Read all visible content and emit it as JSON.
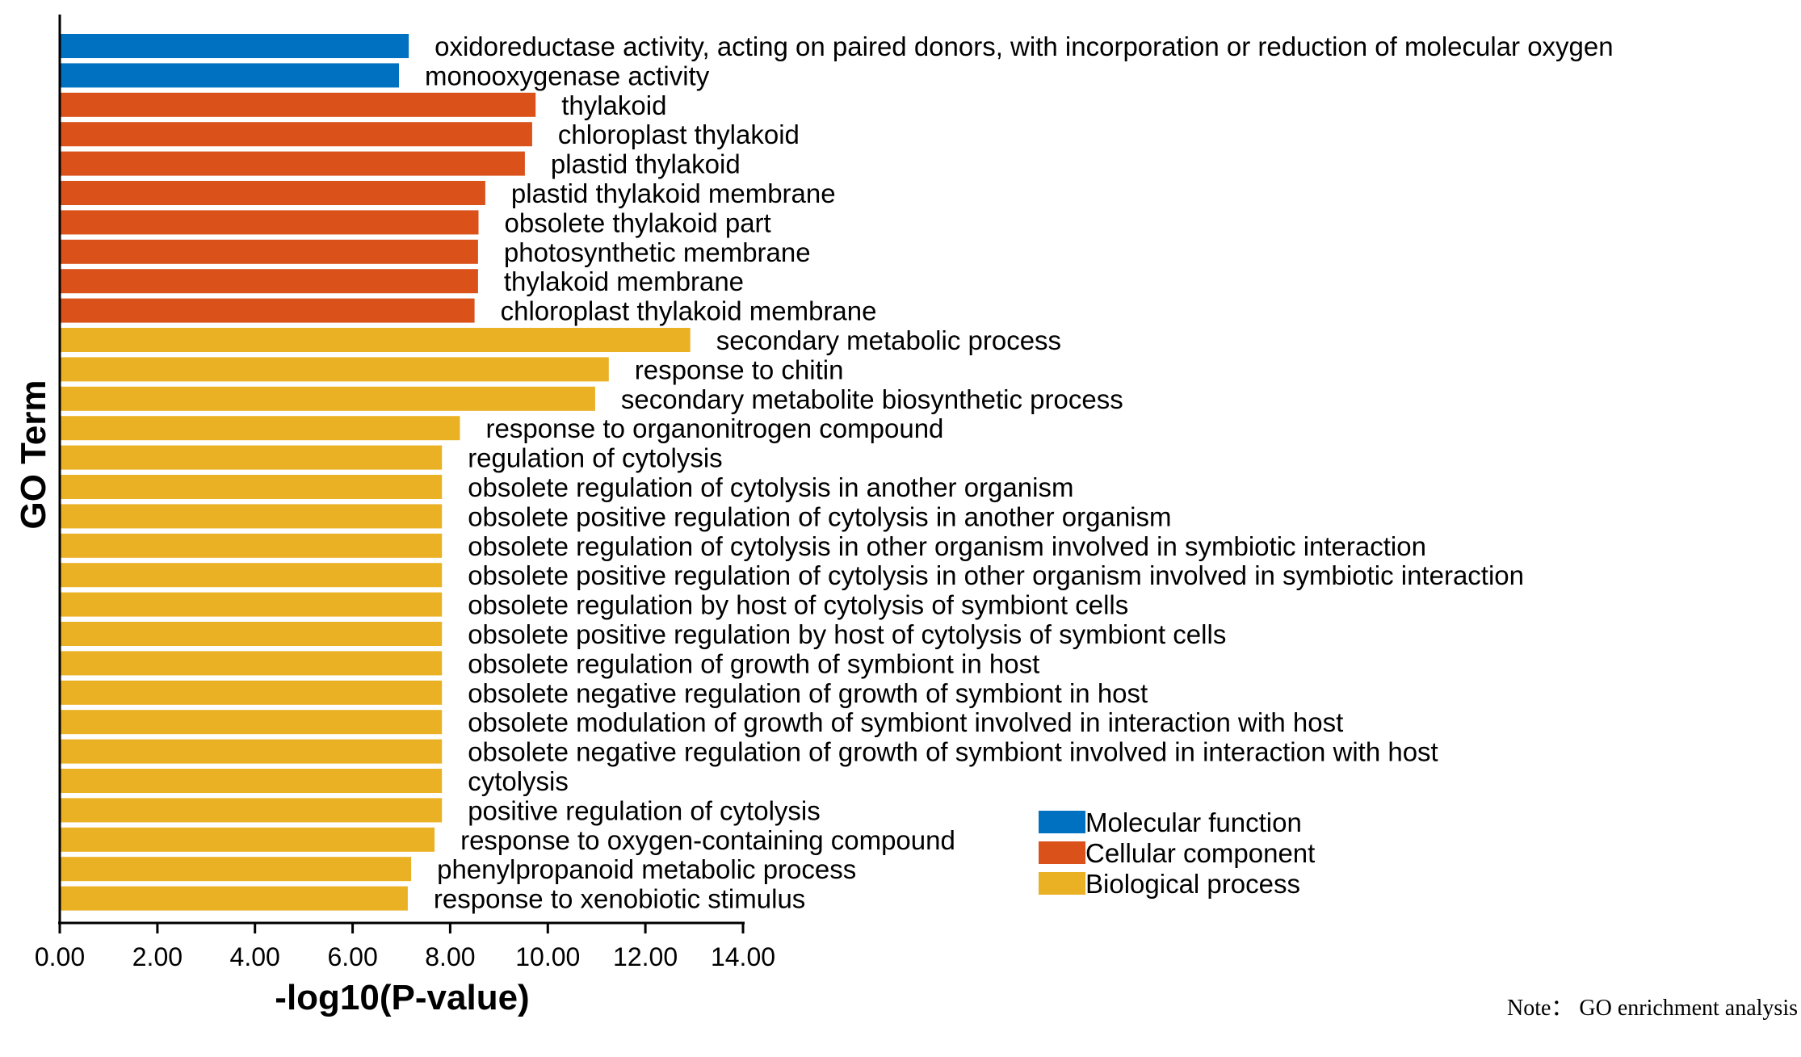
{
  "chart_data": {
    "type": "bar",
    "orientation": "horizontal",
    "xlabel": "-log10(P-value)",
    "ylabel": "GO Term",
    "xlim": [
      0,
      14
    ],
    "x_ticks": [
      "0.00",
      "2.00",
      "4.00",
      "6.00",
      "8.00",
      "10.00",
      "12.00",
      "14.00"
    ],
    "grid": false,
    "legend_placement": "bottom-right",
    "categories_legend": [
      {
        "name": "Molecular function",
        "color": "#0070C0"
      },
      {
        "name": "Cellular component",
        "color": "#DA521A"
      },
      {
        "name": "Biological process",
        "color": "#EAB125"
      }
    ],
    "bars": [
      {
        "term": "oxidoreductase activity, acting on paired donors, with incorporation or reduction of molecular oxygen",
        "value": 7.15,
        "category": 0
      },
      {
        "term": "monooxygenase activity",
        "value": 6.95,
        "category": 0
      },
      {
        "term": "thylakoid",
        "value": 9.75,
        "category": 1
      },
      {
        "term": "chloroplast thylakoid",
        "value": 9.68,
        "category": 1
      },
      {
        "term": "plastid thylakoid",
        "value": 9.53,
        "category": 1
      },
      {
        "term": "plastid thylakoid membrane",
        "value": 8.72,
        "category": 1
      },
      {
        "term": "obsolete thylakoid part",
        "value": 8.58,
        "category": 1
      },
      {
        "term": "photosynthetic membrane",
        "value": 8.57,
        "category": 1
      },
      {
        "term": "thylakoid membrane",
        "value": 8.57,
        "category": 1
      },
      {
        "term": "chloroplast thylakoid membrane",
        "value": 8.5,
        "category": 1
      },
      {
        "term": "secondary metabolic process",
        "value": 12.92,
        "category": 2
      },
      {
        "term": "response to chitin",
        "value": 11.25,
        "category": 2
      },
      {
        "term": "secondary metabolite biosynthetic process",
        "value": 10.97,
        "category": 2
      },
      {
        "term": "response to organonitrogen compound",
        "value": 8.2,
        "category": 2
      },
      {
        "term": "regulation of cytolysis",
        "value": 7.83,
        "category": 2
      },
      {
        "term": "obsolete regulation of cytolysis in another organism",
        "value": 7.83,
        "category": 2
      },
      {
        "term": "obsolete positive regulation of cytolysis in another organism",
        "value": 7.83,
        "category": 2
      },
      {
        "term": "obsolete regulation of cytolysis in other organism involved in symbiotic interaction",
        "value": 7.83,
        "category": 2
      },
      {
        "term": "obsolete positive regulation of cytolysis in other organism involved in symbiotic interaction",
        "value": 7.83,
        "category": 2
      },
      {
        "term": "obsolete regulation by host of cytolysis of symbiont cells",
        "value": 7.83,
        "category": 2
      },
      {
        "term": "obsolete positive regulation by host of cytolysis of symbiont cells",
        "value": 7.83,
        "category": 2
      },
      {
        "term": "obsolete regulation of growth of symbiont in host",
        "value": 7.83,
        "category": 2
      },
      {
        "term": "obsolete negative regulation of growth of symbiont in host",
        "value": 7.83,
        "category": 2
      },
      {
        "term": "obsolete modulation of growth of symbiont involved in interaction with host",
        "value": 7.83,
        "category": 2
      },
      {
        "term": "obsolete negative regulation of growth of symbiont involved in interaction with host",
        "value": 7.83,
        "category": 2
      },
      {
        "term": "cytolysis",
        "value": 7.83,
        "category": 2
      },
      {
        "term": "positive regulation of cytolysis",
        "value": 7.83,
        "category": 2
      },
      {
        "term": "response to oxygen-containing compound",
        "value": 7.68,
        "category": 2
      },
      {
        "term": "phenylpropanoid metabolic process",
        "value": 7.2,
        "category": 2
      },
      {
        "term": "response to xenobiotic stimulus",
        "value": 7.13,
        "category": 2
      }
    ]
  },
  "note": "Note：  GO enrichment analysis"
}
